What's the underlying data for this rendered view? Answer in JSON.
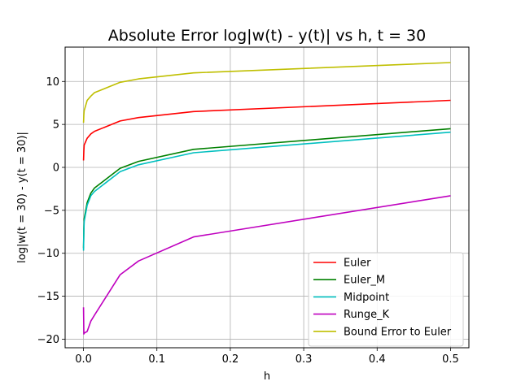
{
  "chart_data": {
    "type": "line",
    "title": "Absolute Error log|w(t) - y(t)| vs h, t = 30",
    "xlabel": "h",
    "ylabel": "log|w(t = 30) - y(t = 30)|",
    "xlim": [
      -0.025,
      0.525
    ],
    "ylim": [
      -21,
      14
    ],
    "xticks": [
      0.0,
      0.1,
      0.2,
      0.3,
      0.4,
      0.5
    ],
    "xtick_labels": [
      "0.0",
      "0.1",
      "0.2",
      "0.3",
      "0.4",
      "0.5"
    ],
    "yticks": [
      -20,
      -15,
      -10,
      -5,
      0,
      5,
      10
    ],
    "ytick_labels": [
      "−20",
      "−15",
      "−10",
      "−5",
      "0",
      "5",
      "10"
    ],
    "grid": true,
    "legend_position": "lower-right",
    "series": [
      {
        "name": "Euler",
        "color": "#ff0000",
        "x": [
          0.0001,
          0.0005,
          0.001,
          0.005,
          0.01,
          0.015,
          0.05,
          0.075,
          0.15,
          0.5
        ],
        "y": [
          0.8,
          1.9,
          2.6,
          3.4,
          3.9,
          4.2,
          5.4,
          5.8,
          6.5,
          7.8
        ]
      },
      {
        "name": "Euler_M",
        "color": "#008000",
        "x": [
          0.0001,
          0.0005,
          0.001,
          0.005,
          0.01,
          0.015,
          0.05,
          0.075,
          0.15,
          0.5
        ],
        "y": [
          -9.4,
          -7.2,
          -6.0,
          -4.1,
          -3.0,
          -2.4,
          -0.1,
          0.7,
          2.1,
          4.5
        ]
      },
      {
        "name": "Midpoint",
        "color": "#00bfbf",
        "x": [
          0.0001,
          0.0005,
          0.001,
          0.005,
          0.01,
          0.015,
          0.05,
          0.075,
          0.15,
          0.5
        ],
        "y": [
          -9.7,
          -7.5,
          -6.3,
          -4.4,
          -3.3,
          -2.8,
          -0.5,
          0.3,
          1.7,
          4.1
        ]
      },
      {
        "name": "Runge_K",
        "color": "#bf00bf",
        "x": [
          0.0001,
          0.0005,
          0.001,
          0.005,
          0.01,
          0.015,
          0.05,
          0.075,
          0.15,
          0.5
        ],
        "y": [
          -16.3,
          -19.4,
          -19.3,
          -19.1,
          -17.9,
          -17.2,
          -12.5,
          -10.9,
          -8.1,
          -3.3
        ]
      },
      {
        "name": "Bound Error to Euler",
        "color": "#bfbf00",
        "x": [
          0.0001,
          0.0005,
          0.001,
          0.005,
          0.01,
          0.015,
          0.05,
          0.075,
          0.15,
          0.5
        ],
        "y": [
          5.2,
          6.1,
          6.6,
          7.8,
          8.3,
          8.7,
          9.9,
          10.3,
          11.0,
          12.2
        ]
      }
    ]
  }
}
